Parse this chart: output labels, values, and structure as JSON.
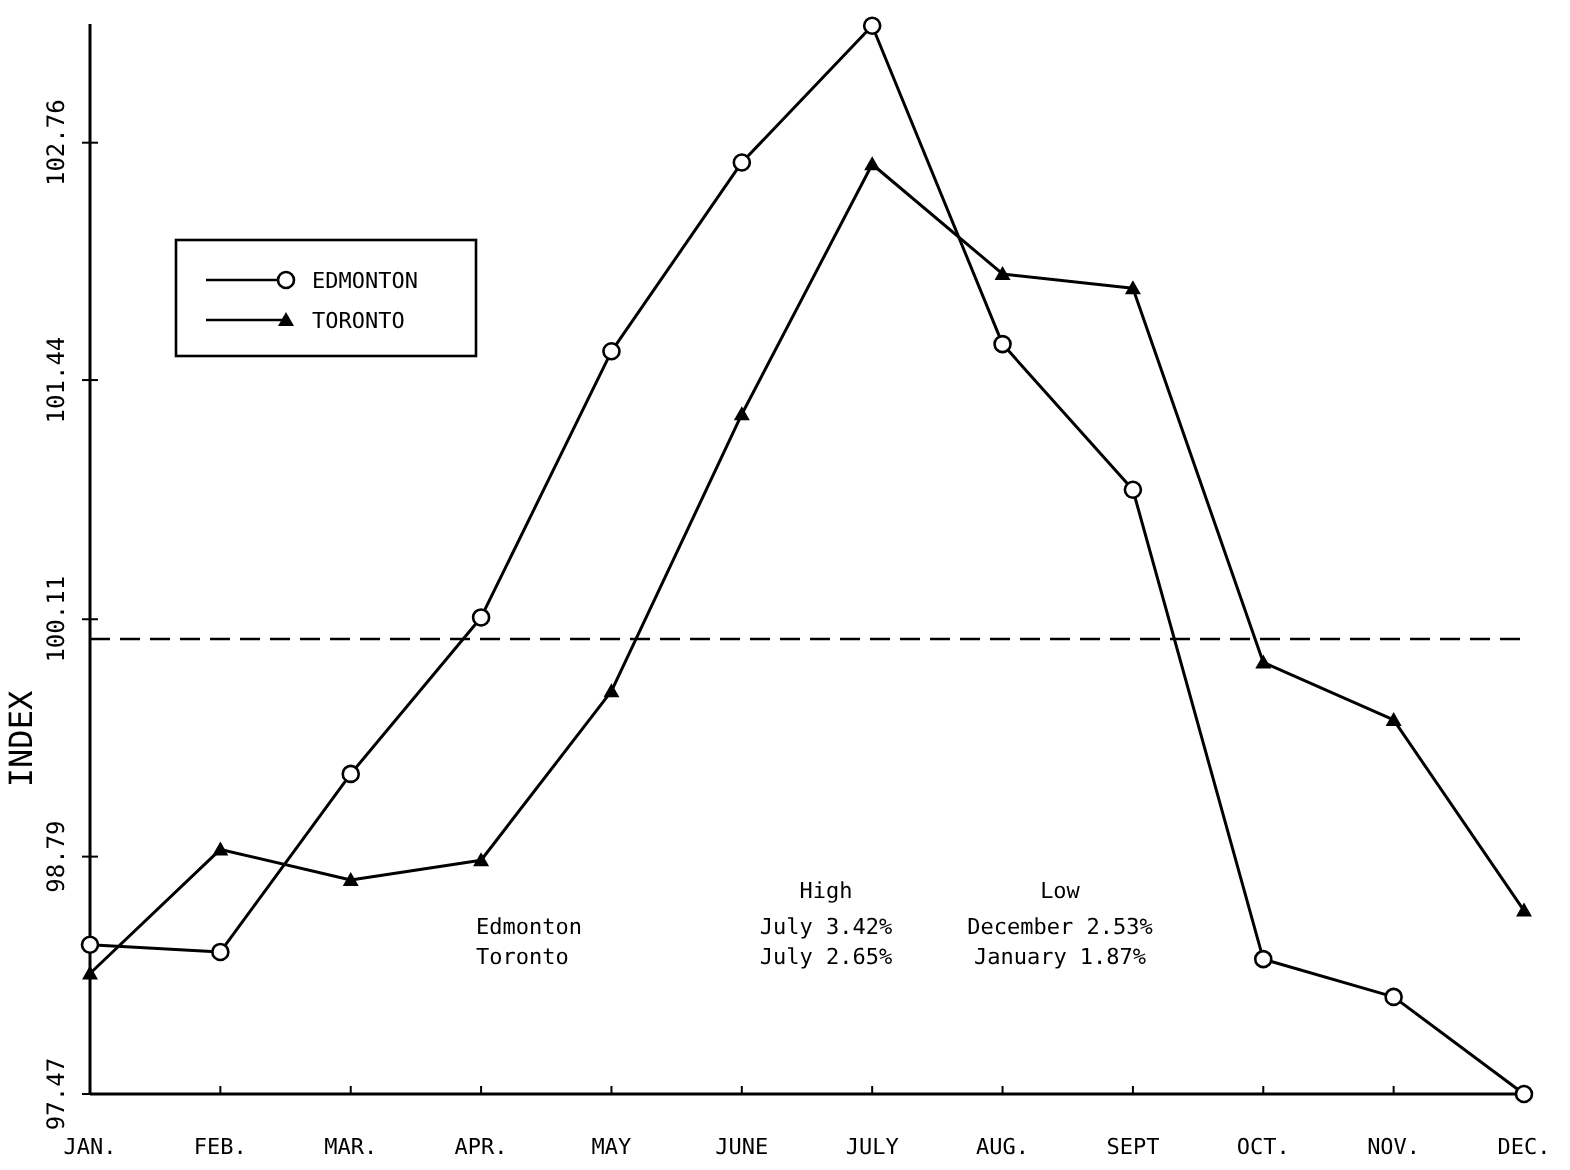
{
  "chart_data": {
    "type": "line",
    "ylabel": "INDEX",
    "categories": [
      "JAN.",
      "FEB.",
      "MAR.",
      "APR.",
      "MAY",
      "JUNE",
      "JULY",
      "AUG.",
      "SEPT",
      "OCT.",
      "NOV.",
      "DEC."
    ],
    "series": [
      {
        "name": "EDMONTON",
        "color": "#000000",
        "marker": "circle",
        "values": [
          98.3,
          98.26,
          99.25,
          100.12,
          101.6,
          102.65,
          103.41,
          101.64,
          100.83,
          98.22,
          98.01,
          97.47
        ]
      },
      {
        "name": "TORONTO",
        "color": "#000000",
        "marker": "triangle",
        "values": [
          98.14,
          98.83,
          98.66,
          98.77,
          99.71,
          101.25,
          102.64,
          102.03,
          101.95,
          99.87,
          99.55,
          98.49
        ]
      }
    ],
    "ylim": [
      97.47,
      103.42
    ],
    "yticks": [
      97.47,
      98.79,
      100.11,
      101.44,
      102.76
    ],
    "ref_lines": [
      {
        "axis": "y",
        "value": 100,
        "color": "#000000",
        "line_style": "dashed"
      }
    ],
    "legend": "top left",
    "grid": false,
    "line_style": "solid",
    "annotations": [
      "Edmonton",
      "Toronto",
      "High",
      "July 3.42%",
      "July 2.65%",
      "Low",
      "December 2.53%",
      "January 1.87%"
    ]
  }
}
